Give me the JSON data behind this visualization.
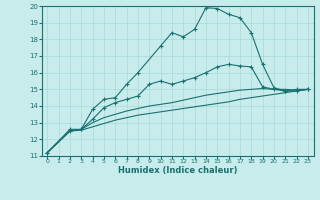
{
  "xlabel": "Humidex (Indice chaleur)",
  "bg_color": "#c8ecec",
  "line_color": "#1a7070",
  "grid_color": "#a8d8d8",
  "xlim": [
    -0.5,
    23.5
  ],
  "ylim": [
    11,
    20
  ],
  "xticks": [
    0,
    1,
    2,
    3,
    4,
    5,
    6,
    7,
    8,
    9,
    10,
    11,
    12,
    13,
    14,
    15,
    16,
    17,
    18,
    19,
    20,
    21,
    22,
    23
  ],
  "yticks": [
    11,
    12,
    13,
    14,
    15,
    16,
    17,
    18,
    19,
    20
  ],
  "lines": [
    {
      "x": [
        0,
        2,
        3,
        4,
        5,
        6,
        7,
        8,
        10,
        11,
        12,
        13,
        14,
        15,
        16,
        17,
        18,
        19,
        20,
        21,
        22,
        23
      ],
      "y": [
        11.2,
        12.6,
        12.6,
        13.8,
        14.4,
        14.5,
        15.3,
        16.0,
        17.6,
        18.4,
        18.15,
        18.6,
        19.9,
        19.85,
        19.5,
        19.3,
        18.4,
        16.5,
        15.1,
        14.9,
        15.0,
        15.0
      ],
      "marker": true
    },
    {
      "x": [
        0,
        2,
        3,
        4,
        5,
        6,
        7,
        8,
        9,
        10,
        11,
        12,
        13,
        14,
        15,
        16,
        17,
        18,
        19,
        20,
        21,
        22,
        23
      ],
      "y": [
        11.2,
        12.5,
        12.6,
        13.2,
        13.9,
        14.2,
        14.4,
        14.6,
        15.3,
        15.5,
        15.3,
        15.5,
        15.7,
        16.0,
        16.35,
        16.5,
        16.4,
        16.35,
        15.15,
        15.0,
        14.9,
        14.9,
        15.0
      ],
      "marker": true
    },
    {
      "x": [
        0,
        2,
        3,
        4,
        5,
        6,
        7,
        8,
        9,
        10,
        11,
        12,
        13,
        14,
        15,
        16,
        17,
        18,
        19,
        20,
        21,
        22,
        23
      ],
      "y": [
        11.2,
        12.5,
        12.6,
        13.0,
        13.3,
        13.5,
        13.7,
        13.85,
        14.0,
        14.1,
        14.2,
        14.35,
        14.5,
        14.65,
        14.75,
        14.85,
        14.95,
        15.0,
        15.05,
        15.0,
        15.0,
        14.95,
        15.0
      ],
      "marker": false
    },
    {
      "x": [
        0,
        2,
        3,
        4,
        5,
        6,
        7,
        8,
        9,
        10,
        11,
        12,
        13,
        14,
        15,
        16,
        17,
        18,
        19,
        20,
        21,
        22,
        23
      ],
      "y": [
        11.2,
        12.5,
        12.55,
        12.75,
        12.95,
        13.15,
        13.3,
        13.45,
        13.55,
        13.65,
        13.75,
        13.85,
        13.95,
        14.05,
        14.15,
        14.25,
        14.4,
        14.5,
        14.6,
        14.7,
        14.8,
        14.9,
        15.0
      ],
      "marker": false
    }
  ]
}
